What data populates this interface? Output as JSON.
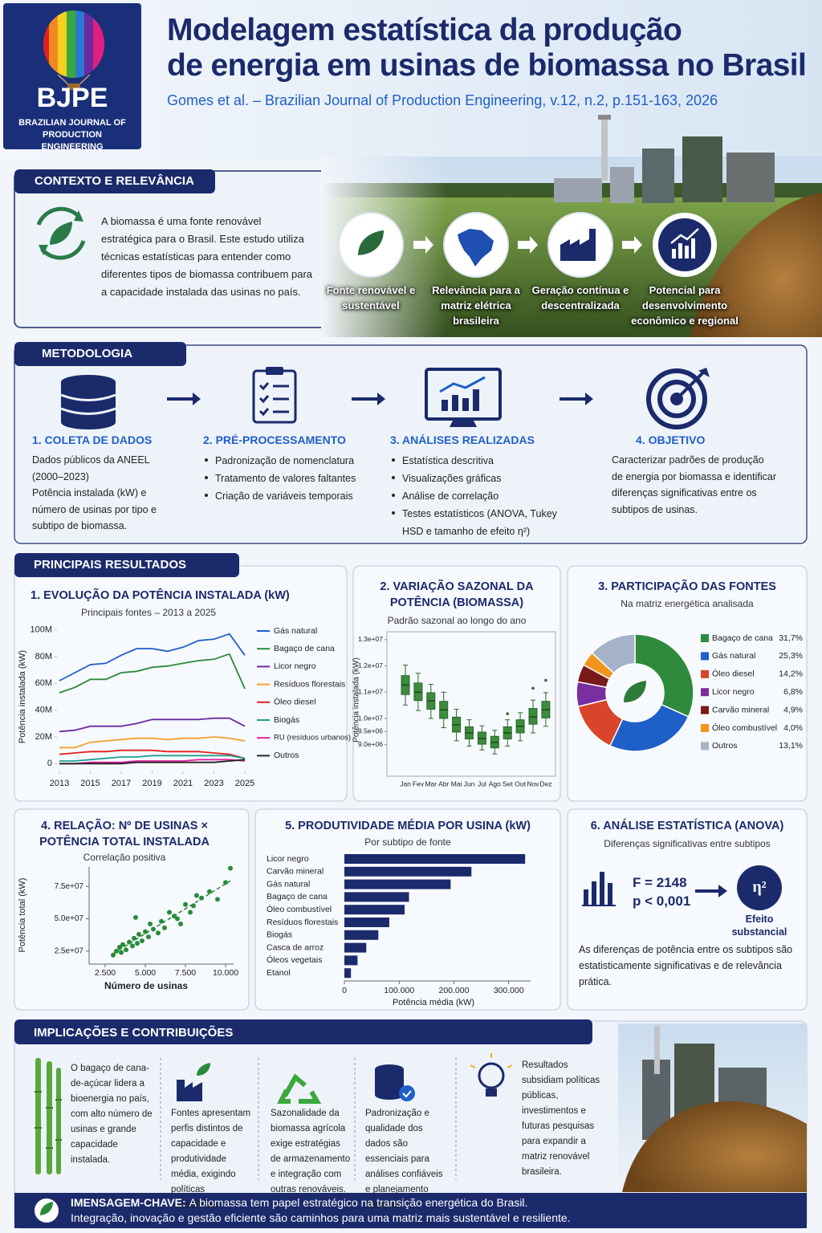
{
  "header": {
    "logo": "BJPE",
    "journal": "BRAZILIAN JOURNAL OF PRODUCTION ENGINEERING",
    "title_line1": "Modelagem estatística da produção",
    "title_line2": "de energia em usinas de biomassa no Brasil",
    "citation": "Gomes et al. – Brazilian Journal of Production Engineering, v.12, n.2, p.151-163, 2026"
  },
  "context": {
    "heading": "CONTEXTO E RELEVÂNCIA",
    "text": "A biomassa é uma fonte renovável estratégica para o Brasil. Este estudo utiliza técnicas estatísticas para entender como diferentes tipos de biomassa contribuem para a capacidade instalada das usinas no país.",
    "steps": [
      "Fonte renovável e sustentável",
      "Relevância para a matriz elétrica brasileira",
      "Geração contínua e descentralizada",
      "Potencial para desenvolvimento econômico e regional"
    ]
  },
  "methodology": {
    "heading": "METODOLOGIA",
    "steps": [
      {
        "title": "1. COLETA DE DADOS",
        "lines": [
          "Dados públicos da ANEEL (2000–2023)",
          "Potência instalada (kW) e número de usinas por tipo e subtipo de biomassa."
        ]
      },
      {
        "title": "2. PRÉ-PROCESSAMENTO",
        "items": [
          "Padronização de nomenclatura",
          "Tratamento de valores faltantes",
          "Criação de variáveis temporais"
        ]
      },
      {
        "title": "3. ANÁLISES REALIZADAS",
        "items": [
          "Estatística descritiva",
          "Visualizações gráficas",
          "Análise de correlação",
          "Testes estatísticos (ANOVA, Tukey HSD e tamanho de efeito η²)"
        ]
      },
      {
        "title": "4. OBJETIVO",
        "lines": [
          "Caracterizar padrões de produção de energia por biomassa e identificar diferenças significativas entre os subtipos de usinas."
        ]
      }
    ]
  },
  "results": {
    "heading": "PRINCIPAIS RESULTADOS",
    "charts": [
      {
        "type": "line",
        "title": "1. EVOLUÇÃO DA POTÊNCIA INSTALADA (kW)",
        "subtitle": "Principais fontes – 2013 a 2025",
        "y_label": "Potência instalada (kW)",
        "x": [
          2013,
          2014,
          2015,
          2016,
          2017,
          2018,
          2019,
          2020,
          2021,
          2022,
          2023,
          2024,
          2025
        ],
        "xlim": [
          2013,
          2025
        ],
        "xticks": [
          2013,
          2015,
          2017,
          2019,
          2021,
          2023,
          2025
        ],
        "ylim": [
          -4000000,
          104000000
        ],
        "yticks": [
          {
            "value": 100000000,
            "label": "100M"
          },
          {
            "value": 80000000,
            "label": "80M"
          },
          {
            "value": 60000000,
            "label": "60M"
          },
          {
            "value": 40000000,
            "label": "40M"
          },
          {
            "value": 20000000,
            "label": "20M"
          },
          0
        ],
        "grid": false,
        "series": [
          {
            "name": "Gás natural",
            "color": "#1f5fc8",
            "values": [
              62000000,
              68000000,
              74000000,
              75000000,
              81000000,
              86000000,
              86000000,
              84000000,
              87000000,
              92000000,
              93000000,
              97000000,
              81000000
            ]
          },
          {
            "name": "Bagaço de cana",
            "color": "#2a8a3a",
            "values": [
              53000000,
              57000000,
              63000000,
              63000000,
              68000000,
              69000000,
              72000000,
              73000000,
              75000000,
              77000000,
              78000000,
              82000000,
              56000000
            ]
          },
          {
            "name": "Licor negro",
            "color": "#6a2aa0",
            "values": [
              24000000,
              25000000,
              28000000,
              28000000,
              28000000,
              30000000,
              33000000,
              33000000,
              33000000,
              33000000,
              34000000,
              34000000,
              28000000
            ]
          },
          {
            "name": "Resíduos florestais",
            "color": "#f5a030",
            "values": [
              12000000,
              12000000,
              16000000,
              17000000,
              18000000,
              19000000,
              19000000,
              18000000,
              19000000,
              19000000,
              20000000,
              19000000,
              17000000
            ]
          },
          {
            "name": "Óleo diesel",
            "color": "#e02020",
            "values": [
              7000000,
              8000000,
              9000000,
              9000000,
              10000000,
              10000000,
              10000000,
              9000000,
              9000000,
              9000000,
              8000000,
              7000000,
              4000000
            ]
          },
          {
            "name": "Biogás",
            "color": "#20a090",
            "values": [
              2000000,
              2000000,
              3000000,
              4000000,
              5000000,
              5000000,
              6000000,
              6000000,
              6000000,
              6000000,
              6000000,
              6000000,
              4000000
            ]
          },
          {
            "name": "RU (resíduos urbanos)",
            "color": "#e020a0",
            "values": [
              0,
              0,
              1000000,
              1000000,
              1000000,
              2000000,
              2000000,
              2000000,
              2000000,
              3000000,
              3000000,
              3000000,
              2000000
            ]
          },
          {
            "name": "Outros",
            "color": "#222222",
            "values": [
              0,
              0,
              0,
              0,
              0,
              1000000,
              1000000,
              1000000,
              1000000,
              1000000,
              1000000,
              2000000,
              3000000
            ]
          }
        ]
      },
      {
        "type": "box",
        "title": "2. VARIAÇÃO SAZONAL DA POTÊNCIA (BIOMASSA)",
        "subtitle": "Padrão sazonal ao longo do ano",
        "y_label": "Potência instalada (kW)",
        "color": "#3d8b3d",
        "categories": [
          "Jan",
          "Fev",
          "Mar",
          "Abr",
          "Mai",
          "Jun",
          "Jul",
          "Ago",
          "Set",
          "Out",
          "Nov",
          "Dez"
        ],
        "ylim": [
          7800000,
          13300000
        ],
        "yticks": [
          {
            "value": 13000000,
            "label": "1.3e+07"
          },
          {
            "value": 12000000,
            "label": "1.2e+07"
          },
          {
            "value": 11000000,
            "label": "1.1e+07"
          },
          {
            "value": 10000000,
            "label": "1.0e+07"
          },
          {
            "value": 9500000,
            "label": "9.5e+06"
          },
          {
            "value": 9000000,
            "label": "9.0e+06"
          }
        ],
        "boxes": [
          {
            "whislo": 10510000,
            "q1": 10910000,
            "med": 11270000,
            "q3": 11630000,
            "whishi": 12030000,
            "fliers": []
          },
          {
            "whislo": 10300000,
            "q1": 10680000,
            "med": 11000000,
            "q3": 11350000,
            "whishi": 11720000,
            "fliers": []
          },
          {
            "whislo": 10000000,
            "q1": 10350000,
            "med": 10670000,
            "q3": 10980000,
            "whishi": 11300000,
            "fliers": []
          },
          {
            "whislo": 9650000,
            "q1": 10000000,
            "med": 10330000,
            "q3": 10650000,
            "whishi": 11000000,
            "fliers": []
          },
          {
            "whislo": 9150000,
            "q1": 9480000,
            "med": 9760000,
            "q3": 10050000,
            "whishi": 10350000,
            "fliers": []
          },
          {
            "whislo": 8950000,
            "q1": 9220000,
            "med": 9450000,
            "q3": 9680000,
            "whishi": 9950000,
            "fliers": []
          },
          {
            "whislo": 8800000,
            "q1": 9020000,
            "med": 9240000,
            "q3": 9480000,
            "whishi": 9720000,
            "fliers": []
          },
          {
            "whislo": 8650000,
            "q1": 8880000,
            "med": 9090000,
            "q3": 9320000,
            "whishi": 9550000,
            "fliers": []
          },
          {
            "whislo": 8950000,
            "q1": 9220000,
            "med": 9450000,
            "q3": 9680000,
            "whishi": 9950000,
            "fliers": [
              10180000
            ]
          },
          {
            "whislo": 9150000,
            "q1": 9450000,
            "med": 9700000,
            "q3": 9950000,
            "whishi": 10220000,
            "fliers": []
          },
          {
            "whislo": 9450000,
            "q1": 9780000,
            "med": 10060000,
            "q3": 10380000,
            "whishi": 10700000,
            "fliers": [
              11150000
            ]
          },
          {
            "whislo": 9700000,
            "q1": 10020000,
            "med": 10330000,
            "q3": 10650000,
            "whishi": 10980000,
            "fliers": [
              11450000
            ]
          }
        ]
      },
      {
        "type": "pie",
        "title": "3. PARTICIPAÇÃO DAS FONTES",
        "subtitle": "Na matriz energética analisada",
        "categories": [
          "Bagaço de cana",
          "Gás natural",
          "Óleo diesel",
          "Licor negro",
          "Carvão mineral",
          "Óleo combustível",
          "Outros"
        ],
        "values": [
          31.7,
          25.3,
          14.2,
          6.8,
          4.9,
          4.0,
          13.1
        ],
        "value_labels": [
          "31,7%",
          "25,3%",
          "14,2%",
          "6,8%",
          "4,9%",
          "4,0%",
          "13,1%"
        ],
        "colors": [
          "#2e8b3e",
          "#1f5fc8",
          "#d9452b",
          "#7a2fa0",
          "#7a1a1a",
          "#f0951e",
          "#a5b3c8"
        ]
      },
      {
        "type": "scatter",
        "title": "4. RELAÇÃO: Nº DE USINAS × POTÊNCIA TOTAL INSTALADA",
        "subtitle": "Correlação positiva",
        "x_label": "Número de usinas",
        "y_label": "Potência total (kW)",
        "color": "#2a8a3a",
        "trend": true,
        "x": [
          3000,
          3200,
          3400,
          3500,
          3600,
          3800,
          4000,
          4200,
          4300,
          4400,
          4500,
          4600,
          4800,
          5000,
          5200,
          5300,
          5500,
          5800,
          6000,
          6200,
          6500,
          6800,
          7000,
          7200,
          7500,
          7800,
          8000,
          8200,
          8500,
          9000,
          9500,
          10000,
          10300
        ],
        "y": [
          22000000,
          25000000,
          28000000,
          24000000,
          30000000,
          26000000,
          32000000,
          29000000,
          35000000,
          51000000,
          31000000,
          38000000,
          33000000,
          40000000,
          36000000,
          46000000,
          42000000,
          39000000,
          48000000,
          43000000,
          55000000,
          52000000,
          50000000,
          46000000,
          61000000,
          55000000,
          60000000,
          68000000,
          66000000,
          71000000,
          65000000,
          78000000,
          89000000
        ],
        "xlim": [
          1500,
          10500
        ],
        "xticks": [
          {
            "value": 2500,
            "label": "2.500"
          },
          {
            "value": 5000,
            "label": "5.000"
          },
          {
            "value": 7500,
            "label": "7.500"
          },
          {
            "value": 10000,
            "label": "10.000"
          }
        ],
        "ylim": [
          15000000,
          90000000
        ],
        "yticks": [
          {
            "value": 25000000,
            "label": "2.5e+07"
          },
          {
            "value": 50000000,
            "label": "5.0e+07"
          },
          {
            "value": 75000000,
            "label": "7.5e+07"
          }
        ]
      },
      {
        "type": "hbar",
        "title": "5. PRODUTIVIDADE MÉDIA POR USINA (kW)",
        "subtitle": "Por subtipo de fonte",
        "x_label": "Potência média (kW)",
        "color": "#1b2a6b",
        "categories": [
          "Licor negro",
          "Carvão mineral",
          "Gás natural",
          "Bagaço de cana",
          "Óleo combustível",
          "Resíduos florestais",
          "Biogás",
          "Casca de arroz",
          "Óleos vegetais",
          "Etanol"
        ],
        "values": [
          330000,
          232000,
          194000,
          118000,
          110000,
          82000,
          62000,
          40000,
          24000,
          12000
        ],
        "xlim": [
          0,
          340000
        ],
        "xticks": [
          0,
          {
            "value": 100000,
            "label": "100.000"
          },
          {
            "value": 200000,
            "label": "200.000"
          },
          {
            "value": 300000,
            "label": "300.000"
          }
        ]
      }
    ],
    "anova": {
      "title": "6. ANÁLISE ESTATÍSTICA (ANOVA)",
      "subtitle": "Diferenças significativas entre subtipos",
      "f_label": "F = 2148",
      "p_label": "p < 0,001",
      "effect_symbol": "η²",
      "effect_label": "Efeito substancial",
      "text": "As diferenças de potência entre os subtipos são estatisticamente significativas e de relevância prática."
    }
  },
  "implications": {
    "heading": "IMPLICAÇÕES E CONTRIBUIÇÕES",
    "items": [
      "O bagaço de cana-de-açúcar lidera a bioenergia no país, com alto número de usinas e grande capacidade instalada.",
      "Fontes apresentam perfis distintos de capacidade e produtividade média, exigindo políticas específicas.",
      "Sazonalidade da biomassa agrícola exige estratégias de armazenamento e integração com outras renováveis.",
      "Padronização e qualidade dos dados são essenciais para análises confiáveis e planejamento eficiente.",
      "Resultados subsidiam políticas públicas, investimentos e futuras pesquisas para expandir a matriz renovável brasileira."
    ]
  },
  "key_message": {
    "label": "IMENSAGEM-CHAVE:",
    "text": "A biomassa tem papel estratégico na transição energética do Brasil.",
    "line2": "Integração, inovação e gestão eficiente são caminhos para uma matriz mais sustentável e resiliente."
  }
}
